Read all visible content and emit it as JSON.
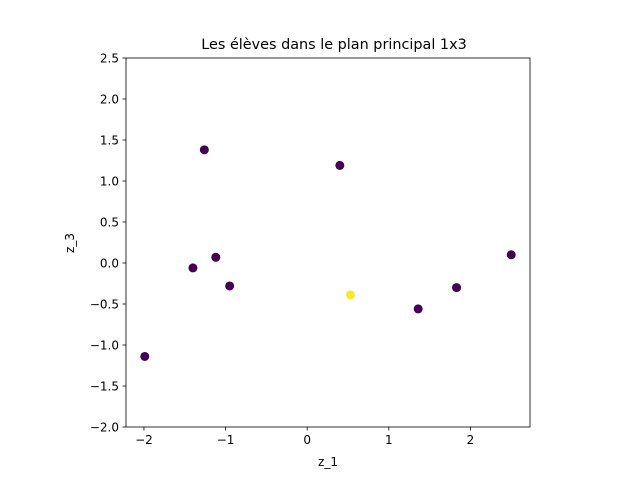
{
  "chart_data": {
    "type": "scatter",
    "title": "Les élèves dans le plan principal 1x3",
    "xlabel": "z_1",
    "ylabel": "z_3",
    "xlim": [
      -2.22,
      2.73
    ],
    "ylim": [
      -2.0,
      2.5
    ],
    "xticks": [
      -2,
      -1,
      0,
      1,
      2
    ],
    "xtick_labels": [
      "−2",
      "−1",
      "0",
      "1",
      "2"
    ],
    "yticks": [
      -2.0,
      -1.5,
      -1.0,
      -0.5,
      0.0,
      0.5,
      1.0,
      1.5,
      2.0,
      2.5
    ],
    "ytick_labels": [
      "−2.0",
      "−1.5",
      "−1.0",
      "−0.5",
      "0.0",
      "0.5",
      "1.0",
      "1.5",
      "2.0",
      "2.5"
    ],
    "grid": false,
    "colors": {
      "dark": "#440154",
      "highlight": "#fde725"
    },
    "points": [
      {
        "x": -1.99,
        "y": -1.14,
        "color": "dark"
      },
      {
        "x": -1.4,
        "y": -0.06,
        "color": "dark"
      },
      {
        "x": -1.26,
        "y": 1.38,
        "color": "dark"
      },
      {
        "x": -1.12,
        "y": 0.07,
        "color": "dark"
      },
      {
        "x": -0.95,
        "y": -0.28,
        "color": "dark"
      },
      {
        "x": 0.4,
        "y": 1.19,
        "color": "dark"
      },
      {
        "x": 0.53,
        "y": -0.39,
        "color": "highlight"
      },
      {
        "x": 1.36,
        "y": -0.56,
        "color": "dark"
      },
      {
        "x": 1.83,
        "y": -0.3,
        "color": "dark"
      },
      {
        "x": 2.5,
        "y": 0.1,
        "color": "dark"
      }
    ]
  }
}
